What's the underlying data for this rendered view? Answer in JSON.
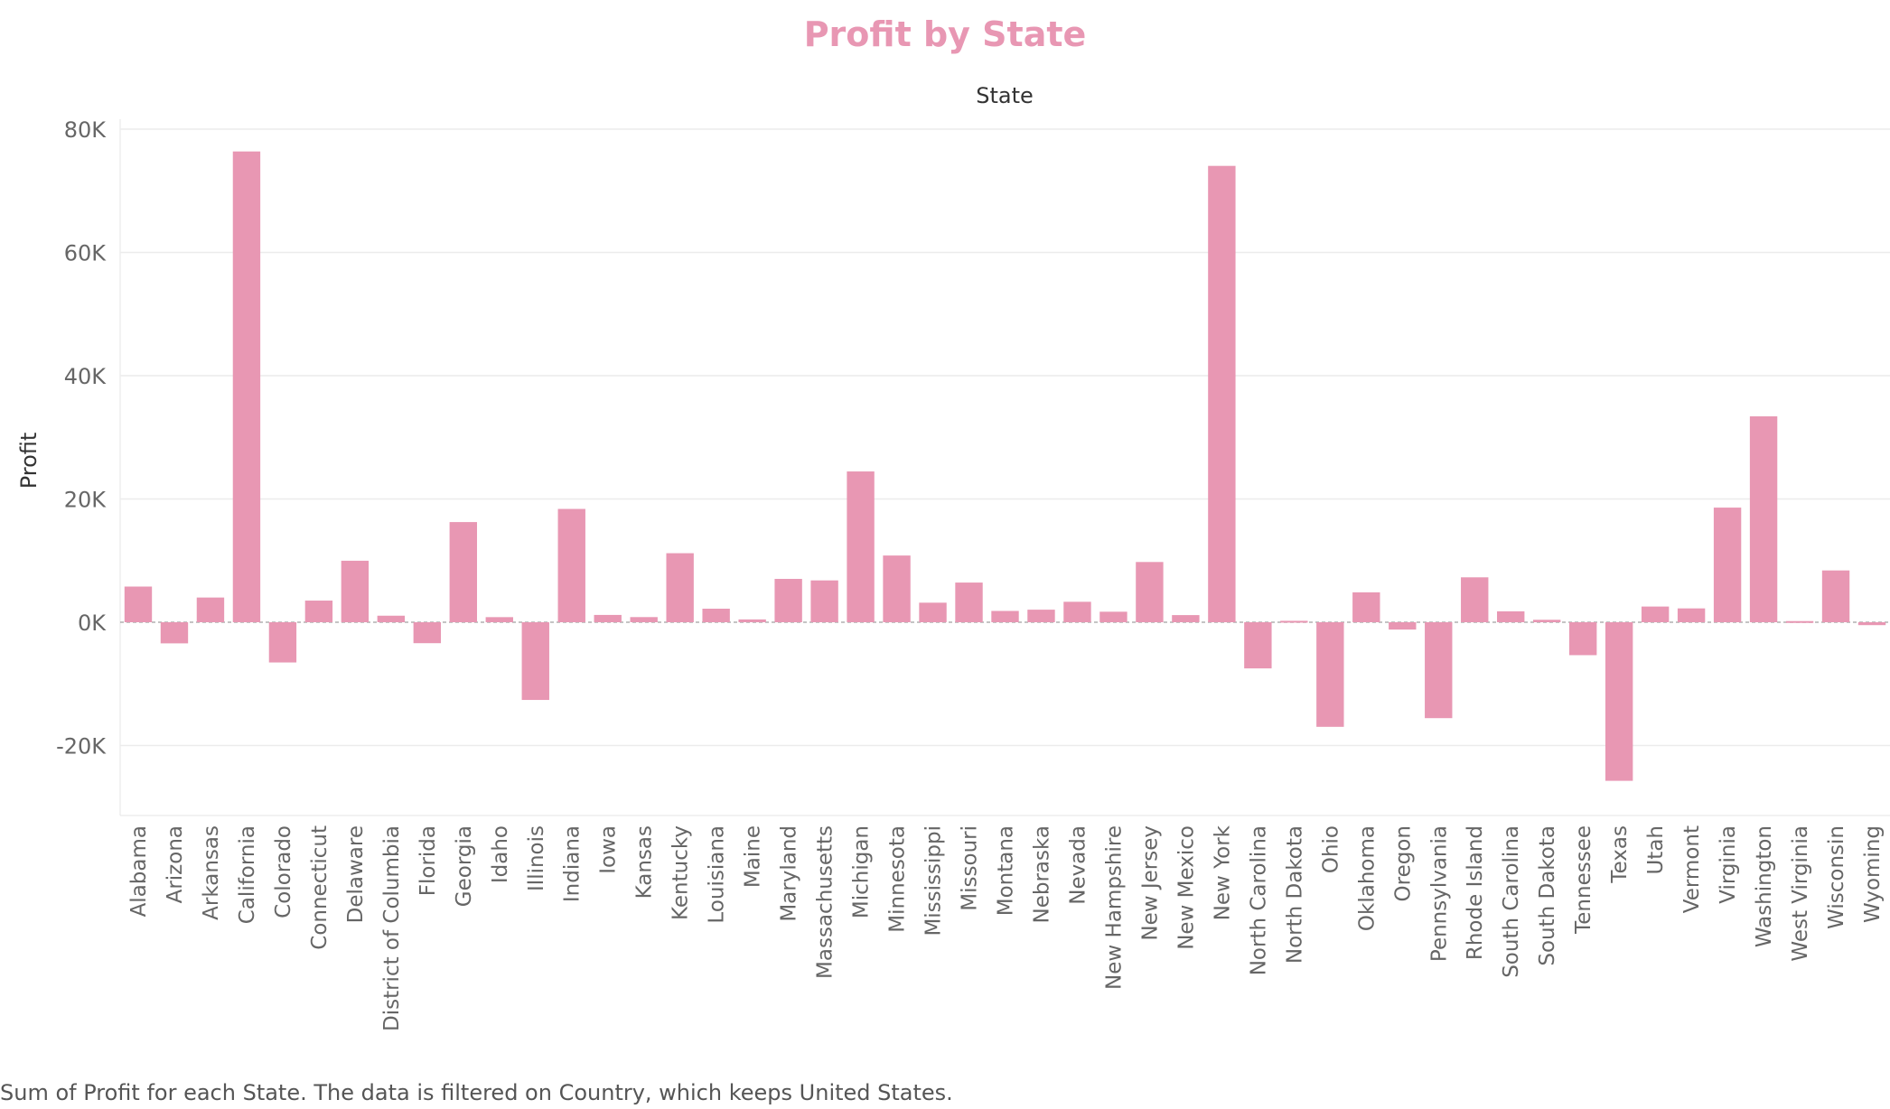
{
  "chart_data": {
    "type": "bar",
    "title": "Profit by State",
    "header_label": "State",
    "ylabel": "Profit",
    "xlabel": "",
    "ylim": [
      -30000,
      80000
    ],
    "y_ticks": [
      {
        "value": 80000,
        "label": "80K"
      },
      {
        "value": 60000,
        "label": "60K"
      },
      {
        "value": 40000,
        "label": "40K"
      },
      {
        "value": 20000,
        "label": "20K"
      },
      {
        "value": 0,
        "label": "0K"
      },
      {
        "value": -20000,
        "label": "-20K"
      }
    ],
    "grid": true,
    "bar_color": "#e897b3",
    "title_color": "#e897b3",
    "categories": [
      "Alabama",
      "Arizona",
      "Arkansas",
      "California",
      "Colorado",
      "Connecticut",
      "Delaware",
      "District of Columbia",
      "Florida",
      "Georgia",
      "Idaho",
      "Illinois",
      "Indiana",
      "Iowa",
      "Kansas",
      "Kentucky",
      "Louisiana",
      "Maine",
      "Maryland",
      "Massachusetts",
      "Michigan",
      "Minnesota",
      "Mississippi",
      "Missouri",
      "Montana",
      "Nebraska",
      "Nevada",
      "New Hampshire",
      "New Jersey",
      "New Mexico",
      "New York",
      "North Carolina",
      "North Dakota",
      "Ohio",
      "Oklahoma",
      "Oregon",
      "Pennsylvania",
      "Rhode Island",
      "South Carolina",
      "South Dakota",
      "Tennessee",
      "Texas",
      "Utah",
      "Vermont",
      "Virginia",
      "Washington",
      "West Virginia",
      "Wisconsin",
      "Wyoming"
    ],
    "values": [
      5787,
      -3428,
      4009,
      76381,
      -6528,
      3511,
      9977,
      1060,
      -3399,
      16250,
      827,
      -12608,
      18383,
      1184,
      836,
      11200,
      2196,
      454,
      7031,
      6786,
      24463,
      10823,
      3172,
      6436,
      1833,
      2037,
      3317,
      1707,
      9773,
      1158,
      74039,
      -7491,
      230,
      -16971,
      4854,
      -1191,
      -15560,
      7286,
      1770,
      395,
      -5342,
      -25729,
      2547,
      2245,
      18598,
      33403,
      186,
      8402,
      -470
    ]
  },
  "caption": "Sum of Profit for each State. The data is filtered on Country, which keeps United States."
}
